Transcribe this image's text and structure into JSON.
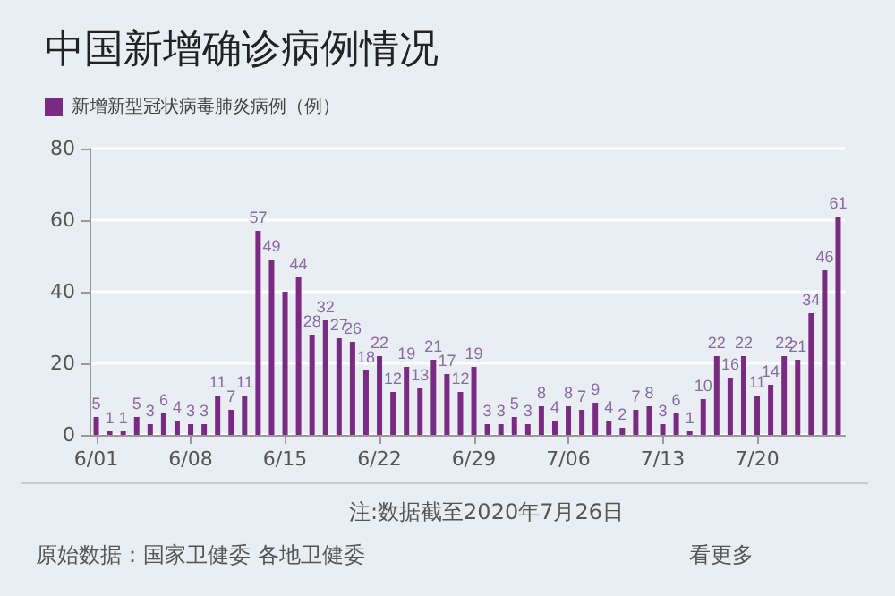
{
  "chart_data": {
    "type": "bar",
    "title": "中国新增确诊病例情况",
    "categories": [
      "6/01",
      null,
      null,
      null,
      null,
      null,
      null,
      "6/08",
      null,
      null,
      null,
      null,
      null,
      null,
      "6/15",
      null,
      null,
      null,
      null,
      null,
      null,
      "6/22",
      null,
      null,
      null,
      null,
      null,
      null,
      "6/29",
      null,
      null,
      null,
      null,
      null,
      null,
      "7/06",
      null,
      null,
      null,
      null,
      null,
      null,
      "7/13",
      null,
      null,
      null,
      null,
      null,
      null,
      "7/20",
      null,
      null,
      null,
      null,
      null,
      null
    ],
    "series": [
      {
        "name": "新增新型冠状病毒肺炎病例（例）",
        "color": "#7b2a84",
        "values": [
          5,
          1,
          1,
          5,
          3,
          6,
          4,
          3,
          3,
          11,
          7,
          11,
          57,
          49,
          40,
          44,
          28,
          32,
          27,
          26,
          18,
          22,
          12,
          19,
          13,
          21,
          17,
          12,
          19,
          3,
          3,
          5,
          3,
          8,
          4,
          8,
          7,
          9,
          4,
          2,
          7,
          8,
          3,
          6,
          1,
          10,
          22,
          16,
          22,
          11,
          14,
          22,
          21,
          34,
          46,
          61
        ],
        "value_labels": [
          "5",
          "1",
          "1",
          "5",
          "3",
          "6",
          "4",
          "3",
          "3",
          "11",
          "7",
          "11",
          "57",
          "49",
          null,
          "44",
          "28",
          "32",
          "27",
          "26",
          "18",
          "22",
          "12",
          "19",
          "13",
          "21",
          "17",
          "12",
          "19",
          "3",
          "3",
          "5",
          "3",
          "8",
          "4",
          "8",
          "7",
          "9",
          "4",
          "2",
          "7",
          "8",
          "3",
          "6",
          "1",
          "10",
          "22",
          "16",
          "22",
          "11",
          "14",
          "22",
          "21",
          "34",
          "46",
          "61"
        ]
      }
    ],
    "ylim": [
      0,
      80
    ],
    "yticks": [
      0,
      20,
      40,
      60,
      80
    ],
    "grid": "y",
    "legend": "top left",
    "annotations": [
      "注:数据截至2020年7月26日",
      "原始数据：国家卫健委 各地卫健委",
      "看更多"
    ]
  }
}
